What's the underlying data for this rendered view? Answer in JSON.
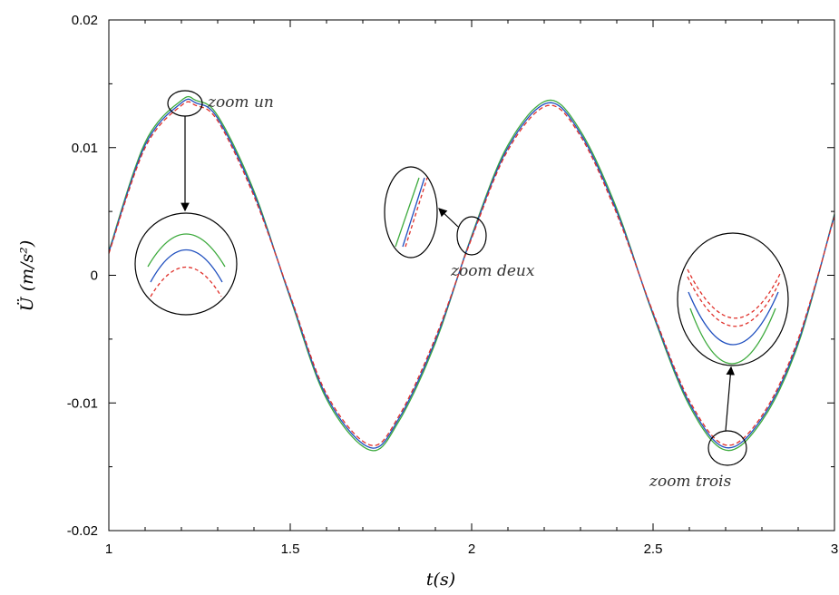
{
  "chart_data": {
    "type": "line",
    "title": "",
    "xlabel": "t(s)",
    "ylabel": "Ü (m/s²)",
    "xlim": [
      1,
      3
    ],
    "ylim": [
      -0.02,
      0.02
    ],
    "x_ticks": [
      "1",
      "1.5",
      "2",
      "2.5",
      "3"
    ],
    "y_ticks": [
      "0.02",
      "0.01",
      "0",
      "-0.01",
      "-0.02"
    ],
    "grid": false,
    "legend": "none",
    "series": [
      {
        "color": "#3daa3d",
        "dash": "solid",
        "x": [
          1.0,
          1.1,
          1.2,
          1.24,
          1.3,
          1.4,
          1.5,
          1.6,
          1.72,
          1.8,
          1.9,
          2.0,
          2.1,
          2.21,
          2.3,
          2.4,
          2.5,
          2.6,
          2.7,
          2.8,
          2.9,
          3.0
        ],
        "y": [
          0.0019,
          0.0104,
          0.0137,
          0.0137,
          0.0125,
          0.0066,
          -0.0018,
          -0.0097,
          -0.0137,
          -0.0114,
          -0.0053,
          0.0031,
          0.0102,
          0.0137,
          0.0113,
          0.0052,
          -0.0031,
          -0.0102,
          -0.0137,
          -0.0114,
          -0.0054,
          0.0048
        ]
      },
      {
        "color": "#1f4fbf",
        "dash": "solid",
        "x": [
          1.0,
          1.1,
          1.2,
          1.24,
          1.3,
          1.4,
          1.5,
          1.6,
          1.72,
          1.8,
          1.9,
          2.0,
          2.1,
          2.21,
          2.3,
          2.4,
          2.5,
          2.6,
          2.7,
          2.8,
          2.9,
          3.0
        ],
        "y": [
          0.0018,
          0.0102,
          0.0135,
          0.0135,
          0.0123,
          0.0064,
          -0.0017,
          -0.0095,
          -0.0135,
          -0.0112,
          -0.0051,
          0.003,
          0.01,
          0.0135,
          0.0111,
          0.005,
          -0.003,
          -0.01,
          -0.0135,
          -0.0112,
          -0.0052,
          0.0047
        ]
      },
      {
        "color": "#e0302a",
        "dash": "dashed",
        "x": [
          1.0,
          1.1,
          1.2,
          1.24,
          1.3,
          1.4,
          1.5,
          1.6,
          1.72,
          1.8,
          1.9,
          2.0,
          2.1,
          2.21,
          2.3,
          2.4,
          2.5,
          2.6,
          2.7,
          2.8,
          2.9,
          3.0
        ],
        "y": [
          0.0017,
          0.01,
          0.0133,
          0.0133,
          0.0121,
          0.0062,
          -0.0016,
          -0.0093,
          -0.0133,
          -0.011,
          -0.0049,
          0.0029,
          0.0098,
          0.0133,
          0.0109,
          0.0048,
          -0.0029,
          -0.0098,
          -0.0133,
          -0.011,
          -0.005,
          0.0046
        ]
      }
    ],
    "annotations": [
      {
        "text": "zoom un"
      },
      {
        "text": "zoom deux"
      },
      {
        "text": "zoom trois"
      }
    ]
  }
}
